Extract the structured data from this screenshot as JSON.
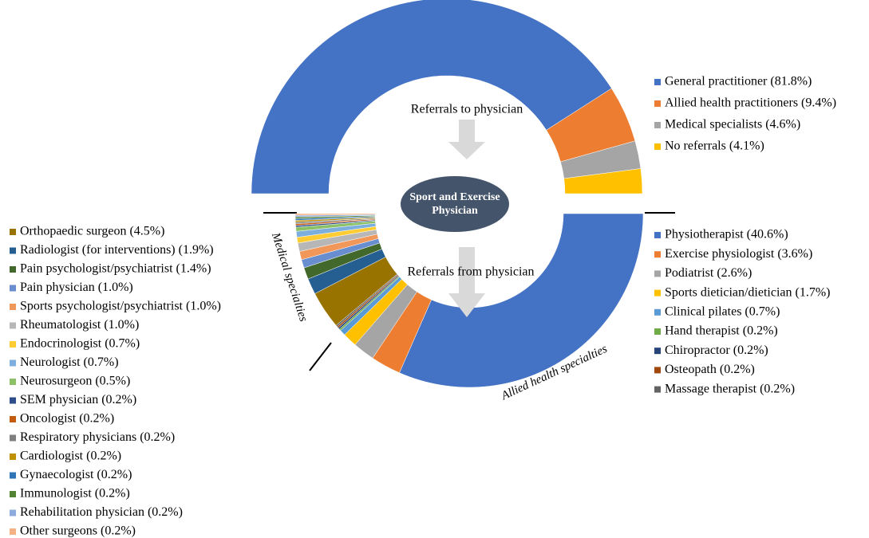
{
  "center_label": "Sport and Exercise Physician",
  "chart_data": [
    {
      "type": "half-donut",
      "annotation": "Referrals to physician",
      "categories": [
        "General practitioner (81.8%)",
        "Allied health practitioners (9.4%)",
        "Medical specialists (4.6%)",
        "No referrals (4.1%)"
      ],
      "values": [
        81.8,
        9.4,
        4.6,
        4.1
      ],
      "colors": [
        "#4472c4",
        "#ed7d31",
        "#a5a5a5",
        "#ffc000"
      ]
    },
    {
      "type": "half-donut",
      "annotation": "Referrals from physician",
      "groups": [
        {
          "name": "Allied health specialties",
          "categories": [
            "Physiotherapist (40.6%)",
            "Exercise physiologist (3.6%)",
            "Podiatrist (2.6%)",
            "Sports dietician/dietician (1.7%)",
            "Clinical pilates (0.7%)",
            "Hand therapist (0.2%)",
            "Chiropractor (0.2%)",
            "Osteopath (0.2%)",
            "Massage therapist (0.2%)"
          ],
          "values": [
            40.6,
            3.6,
            2.6,
            1.7,
            0.7,
            0.2,
            0.2,
            0.2,
            0.2
          ],
          "colors": [
            "#4472c4",
            "#ed7d31",
            "#a5a5a5",
            "#ffc000",
            "#5b9bd5",
            "#70ad47",
            "#264478",
            "#9e480e",
            "#636363"
          ]
        },
        {
          "name": "Medical specialties",
          "categories": [
            "Orthopaedic surgeon (4.5%)",
            "Radiologist (for interventions) (1.9%)",
            "Pain psychologist/psychiatrist (1.4%)",
            "Pain physician (1.0%)",
            "Sports psychologist/psychiatrist (1.0%)",
            "Rheumatologist (1.0%)",
            "Endocrinologist (0.7%)",
            "Neurologist (0.7%)",
            "Neurosurgeon (0.5%)",
            "SEM physician (0.2%)",
            "Oncologist (0.2%)",
            "Respiratory physicians (0.2%)",
            "Cardiologist (0.2%)",
            "Gynaecologist (0.2%)",
            "Immunologist (0.2%)",
            "Rehabilitation physician (0.2%)",
            "Other surgeons (0.2%)"
          ],
          "values": [
            4.5,
            1.9,
            1.4,
            1.0,
            1.0,
            1.0,
            0.7,
            0.7,
            0.5,
            0.2,
            0.2,
            0.2,
            0.2,
            0.2,
            0.2,
            0.2,
            0.2
          ],
          "colors": [
            "#997300",
            "#255e91",
            "#43682b",
            "#698ed0",
            "#f1975a",
            "#b7b7b7",
            "#ffcd33",
            "#7cafdd",
            "#8cc168",
            "#2e4d8a",
            "#c55a11",
            "#7f7f7f",
            "#bf9000",
            "#2e75b6",
            "#548235",
            "#8faadc",
            "#f4b183"
          ]
        }
      ]
    }
  ]
}
